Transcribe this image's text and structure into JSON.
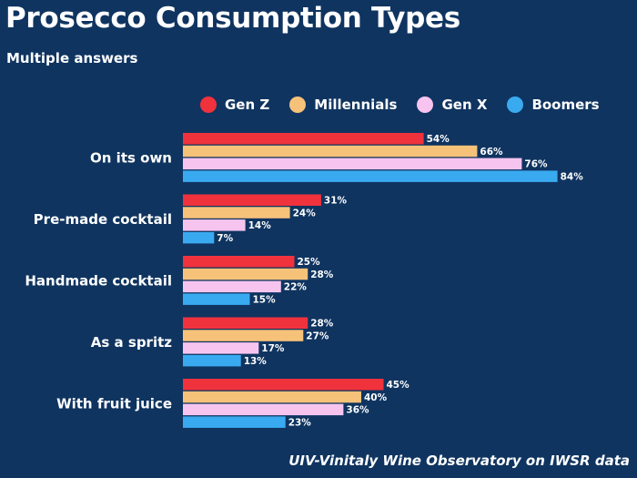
{
  "title": "Prosecco Consumption Types",
  "subtitle": "Multiple answers",
  "source": "UIV-Vinitaly Wine Observatory on IWSR data",
  "colors": {
    "background": "#0f3460",
    "Gen Z": "#f0323d",
    "Millennials": "#f6c27a",
    "Gen X": "#f7c4f0",
    "Boomers": "#3aaaf0"
  },
  "legend": [
    "Gen Z",
    "Millennials",
    "Gen X",
    "Boomers"
  ],
  "chart_data": {
    "type": "bar",
    "orientation": "horizontal",
    "title": "Prosecco Consumption Types",
    "subtitle": "Multiple answers",
    "categories": [
      "On its own",
      "Pre-made cocktail",
      "Handmade cocktail",
      "As a spritz",
      "With fruit juice"
    ],
    "series": [
      {
        "name": "Gen Z",
        "values": [
          54,
          31,
          25,
          28,
          45
        ]
      },
      {
        "name": "Millennials",
        "values": [
          66,
          24,
          28,
          27,
          40
        ]
      },
      {
        "name": "Gen X",
        "values": [
          76,
          14,
          22,
          17,
          36
        ]
      },
      {
        "name": "Boomers",
        "values": [
          84,
          7,
          15,
          13,
          23
        ]
      }
    ],
    "value_suffix": "%",
    "xlim": [
      0,
      100
    ],
    "grid": false,
    "legend_position": "top"
  }
}
